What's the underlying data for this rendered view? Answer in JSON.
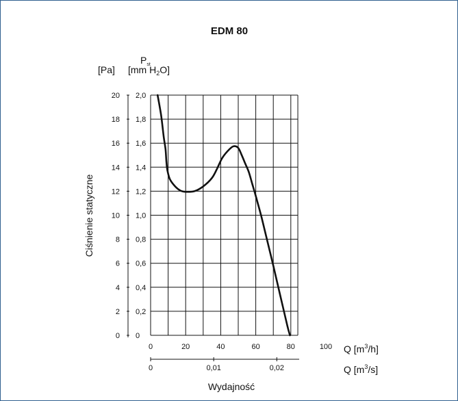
{
  "chart_data": {
    "type": "line",
    "title": "EDM 80",
    "ylabel": "Ciśnienie statyczne",
    "xlabel": "Wydajność",
    "y_unit_pa": "[Pa]",
    "y_unit_mm_sym": "P",
    "y_unit_mm_sub": "st",
    "y_unit_mm_a": "[mm H",
    "y_unit_mm_2": "2",
    "y_unit_mm_b": "O]",
    "x_unit_h_a": "Q [m",
    "x_unit_h_3": "3",
    "x_unit_h_b": "/h]",
    "x_unit_s_a": "Q [m",
    "x_unit_s_3": "3",
    "x_unit_s_b": "/s]",
    "x_ticks_h": [
      "0",
      "20",
      "40",
      "60",
      "80",
      "100"
    ],
    "x_ticks_s": [
      "0",
      "0,01",
      "0,02"
    ],
    "y_ticks_pa": [
      "0",
      "2",
      "4",
      "6",
      "8",
      "10",
      "12",
      "14",
      "16",
      "18",
      "20"
    ],
    "y_ticks_mm": [
      "0",
      "0,2",
      "0,4",
      "0,6",
      "0,8",
      "1,0",
      "1,2",
      "1,4",
      "1,6",
      "1,8",
      "2,0"
    ],
    "xlim": [
      0,
      100
    ],
    "ylim": [
      0,
      20
    ],
    "grid": true,
    "series": [
      {
        "x": [
          4,
          6,
          7.5,
          8.5,
          9,
          9.5,
          11,
          14,
          17,
          20,
          25,
          30,
          35,
          38,
          41,
          45,
          47.5,
          50,
          52,
          54,
          56,
          58,
          60,
          63,
          66,
          70,
          74,
          78,
          79.5
        ],
        "y": [
          20,
          18.3,
          16.5,
          15.5,
          14.5,
          13.8,
          13.0,
          12.4,
          12.05,
          11.95,
          12.0,
          12.4,
          13.1,
          13.9,
          14.8,
          15.5,
          15.75,
          15.6,
          15.0,
          14.3,
          13.6,
          12.6,
          11.6,
          10.0,
          8.2,
          5.8,
          3.3,
          0.8,
          0
        ]
      }
    ]
  }
}
